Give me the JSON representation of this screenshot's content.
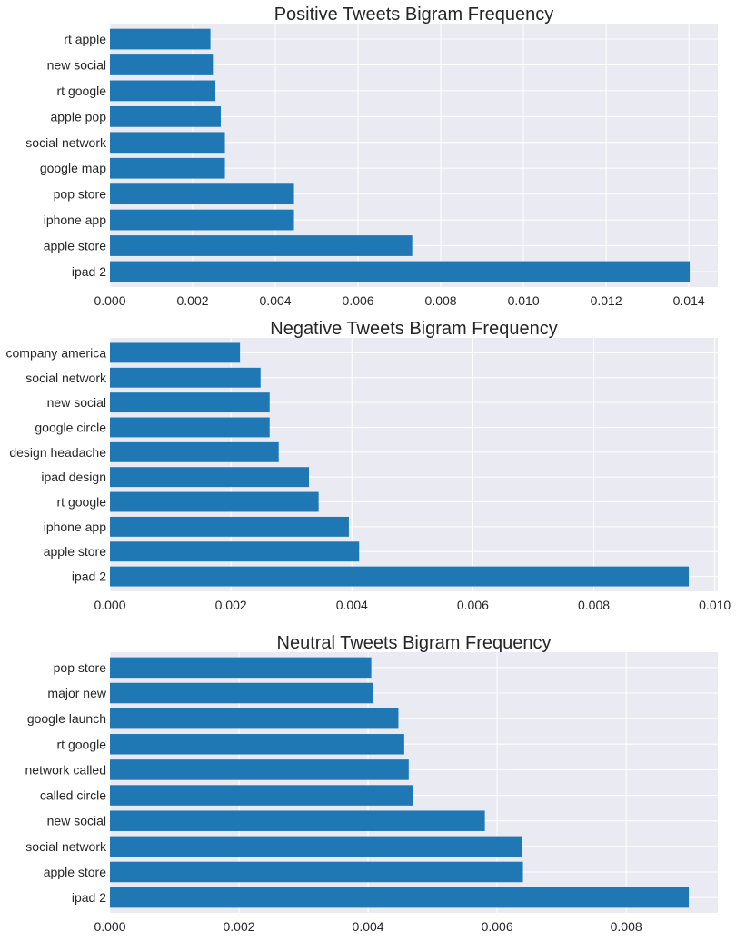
{
  "chart_data": [
    {
      "type": "bar",
      "orientation": "horizontal",
      "title": "Positive Tweets Bigram Frequency",
      "xlabel": "",
      "ylabel": "",
      "xlim": [
        0,
        0.0147
      ],
      "xticks": [
        "0.000",
        "0.002",
        "0.004",
        "0.006",
        "0.008",
        "0.010",
        "0.012",
        "0.014"
      ],
      "grid": true,
      "bar_color": "#1f77b4",
      "categories": [
        "rt apple",
        "new social",
        "rt google",
        "apple pop",
        "social network",
        "google map",
        "pop store",
        "iphone app",
        "apple store",
        "ipad 2"
      ],
      "values": [
        0.00243,
        0.00249,
        0.00255,
        0.00268,
        0.00278,
        0.00278,
        0.00445,
        0.00445,
        0.00731,
        0.01402
      ]
    },
    {
      "type": "bar",
      "orientation": "horizontal",
      "title": "Negative Tweets Bigram Frequency",
      "xlabel": "",
      "ylabel": "",
      "xlim": [
        0,
        0.01005
      ],
      "xticks": [
        "0.000",
        "0.002",
        "0.004",
        "0.006",
        "0.008",
        "0.010"
      ],
      "grid": true,
      "bar_color": "#1f77b4",
      "categories": [
        "company america",
        "social network",
        "new social",
        "google circle",
        "design headache",
        "ipad design",
        "rt google",
        "iphone app",
        "apple store",
        "ipad 2"
      ],
      "values": [
        0.00215,
        0.00249,
        0.00264,
        0.00264,
        0.00279,
        0.00329,
        0.00345,
        0.00395,
        0.00412,
        0.00957
      ]
    },
    {
      "type": "bar",
      "orientation": "horizontal",
      "title": "Neutral Tweets Bigram Frequency",
      "xlabel": "",
      "ylabel": "",
      "xlim": [
        0,
        0.00942
      ],
      "xticks": [
        "0.000",
        "0.002",
        "0.004",
        "0.006",
        "0.008"
      ],
      "grid": true,
      "bar_color": "#1f77b4",
      "categories": [
        "pop store",
        "major new",
        "google launch",
        "rt google",
        "network called",
        "called circle",
        "new social",
        "social network",
        "apple store",
        "ipad 2"
      ],
      "values": [
        0.00405,
        0.00408,
        0.00447,
        0.00456,
        0.00463,
        0.0047,
        0.00581,
        0.00638,
        0.0064,
        0.00897
      ]
    }
  ]
}
